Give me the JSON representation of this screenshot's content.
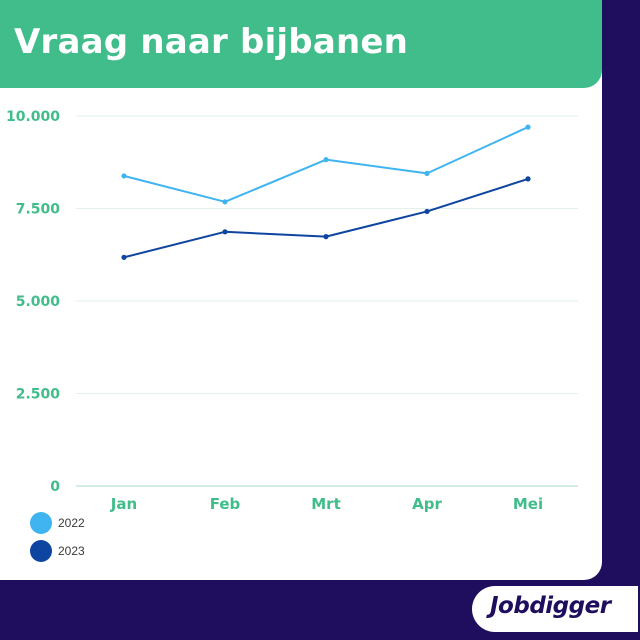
{
  "header": {
    "title": "Vraag naar bijbanen"
  },
  "brand": {
    "logo_text": "Jobdigger"
  },
  "colors": {
    "background": "#1f0d5e",
    "accent": "#40bd8a",
    "series_2022": "#40b4f0",
    "series_2023": "#0e45a0"
  },
  "chart_data": {
    "type": "line",
    "title": "Vraag naar bijbanen",
    "xlabel": "",
    "ylabel": "",
    "categories": [
      "Jan",
      "Feb",
      "Mrt",
      "Apr",
      "Mei"
    ],
    "yticks": [
      "0",
      "2.500",
      "5.000",
      "7.500",
      "10.000"
    ],
    "ytick_values": [
      0,
      2500,
      5000,
      7500,
      10000
    ],
    "ylim": [
      0,
      10000
    ],
    "grid": true,
    "legend_position": "bottom-left",
    "series": [
      {
        "name": "2022",
        "color": "#40b4f0",
        "values": [
          8380,
          7680,
          8820,
          8450,
          9700
        ]
      },
      {
        "name": "2023",
        "color": "#0e45a0",
        "values": [
          6180,
          6870,
          6740,
          7420,
          8300
        ]
      }
    ]
  }
}
